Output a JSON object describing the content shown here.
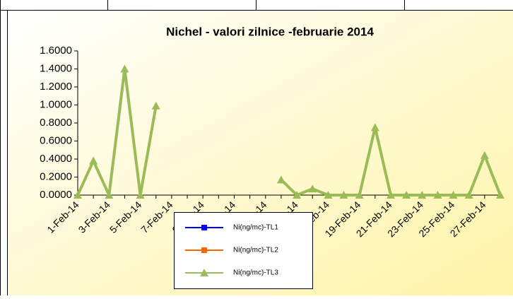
{
  "chart_data": {
    "type": "line",
    "title": "Nichel - valori zilnice -februarie 2014",
    "categories": [
      "1-Feb-14",
      null,
      "3-Feb-14",
      null,
      "5-Feb-14",
      null,
      "7-Feb-14",
      null,
      "9-Feb-14",
      null,
      "11-Feb-14",
      null,
      "13-Feb-14",
      null,
      "15-Feb-14",
      null,
      "17-Feb-14",
      null,
      "19-Feb-14",
      null,
      "21-Feb-14",
      null,
      "23-Feb-14",
      null,
      "25-Feb-14",
      null,
      "27-Feb-14",
      null
    ],
    "series": [
      {
        "name": "Ni(ng/mc)-TL1",
        "color": "#0000ff",
        "marker": "square",
        "values": [
          null,
          null,
          null,
          null,
          null,
          null,
          null,
          null,
          null,
          null,
          null,
          null,
          null,
          null,
          null,
          null,
          null,
          null,
          null,
          null,
          null,
          null,
          null,
          null,
          null,
          null,
          null,
          null
        ]
      },
      {
        "name": "Ni(ng/mc)-TL2",
        "color": "#ff6600",
        "marker": "square",
        "values": [
          null,
          null,
          null,
          null,
          null,
          null,
          null,
          null,
          null,
          null,
          null,
          null,
          null,
          null,
          null,
          null,
          null,
          null,
          null,
          null,
          null,
          null,
          null,
          null,
          null,
          null,
          null,
          null
        ]
      },
      {
        "name": "Ni(ng/mc)-TL3",
        "color": "#9bbb59",
        "marker": "triangle",
        "values": [
          0,
          0.38,
          0,
          1.4,
          0,
          0.99,
          null,
          null,
          null,
          null,
          null,
          null,
          null,
          0.17,
          0,
          0.07,
          0,
          0,
          0,
          0.75,
          0,
          0,
          0,
          0,
          0,
          0,
          0.44,
          0
        ]
      }
    ],
    "ylim": [
      0,
      1.6
    ],
    "yticks": [
      {
        "value": 0,
        "label": "0.0000"
      },
      {
        "value": 0.2,
        "label": "0.2000"
      },
      {
        "value": 0.4,
        "label": "0.4000"
      },
      {
        "value": 0.6,
        "label": "0.6000"
      },
      {
        "value": 0.8,
        "label": "0.8000"
      },
      {
        "value": 1.0,
        "label": "1.0000"
      },
      {
        "value": 1.2,
        "label": "1.2000"
      },
      {
        "value": 1.4,
        "label": "1.4000"
      },
      {
        "value": 1.6,
        "label": "1.6000"
      }
    ],
    "grid": false
  }
}
